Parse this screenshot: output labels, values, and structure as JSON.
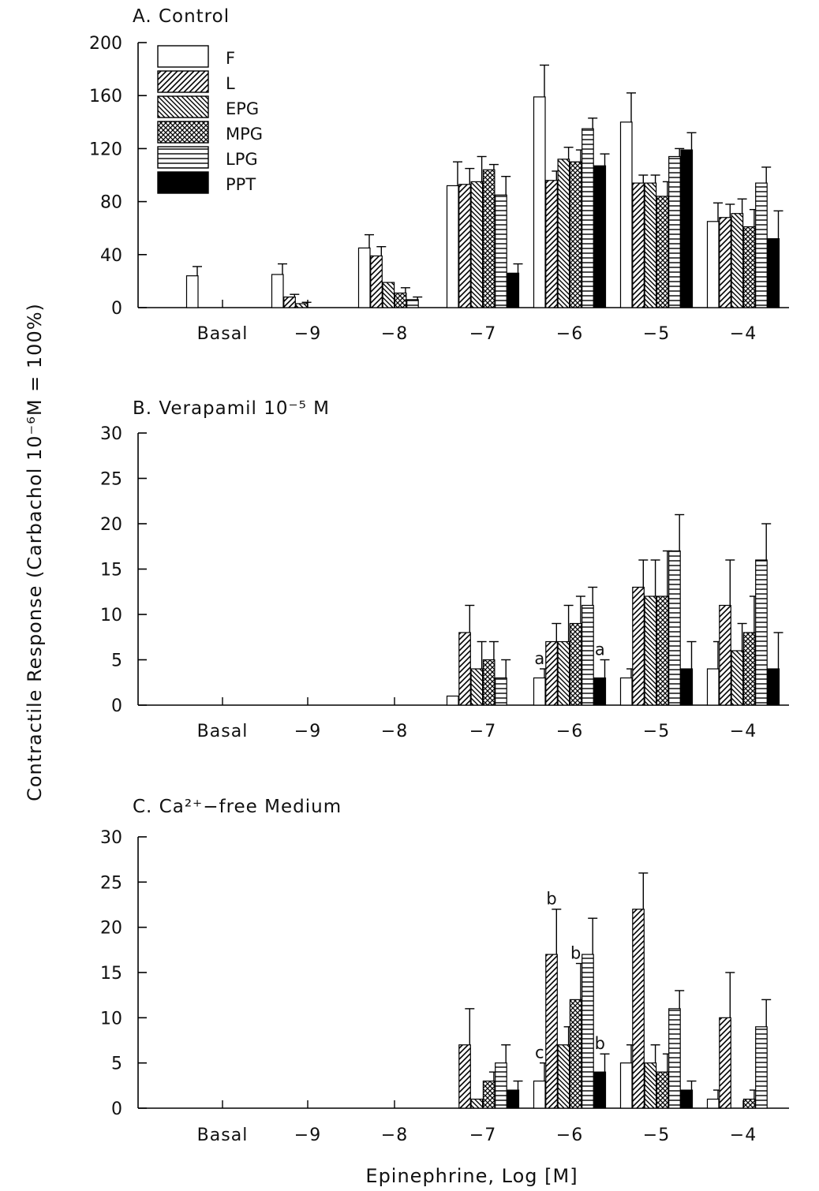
{
  "y_axis_label": "Contractile Response (Carbachol 10⁻⁶M = 100%)",
  "x_axis_label": "Epinephrine, Log [M]",
  "patterns": {
    "F": "white",
    "L": "diag-right",
    "EPG": "diag-left",
    "MPG": "cross",
    "LPG": "horiz",
    "PPT": "black"
  },
  "chart_data": [
    {
      "type": "bar",
      "title": "A. Control",
      "categories": [
        "Basal",
        "−9",
        "−8",
        "−7",
        "−6",
        "−5",
        "−4"
      ],
      "ylim": [
        0,
        200
      ],
      "yticks": [
        0,
        40,
        80,
        120,
        160,
        200
      ],
      "grid": false,
      "legend_placement": "top-left",
      "series": [
        {
          "name": "F",
          "values": [
            24,
            25,
            45,
            92,
            159,
            140,
            65
          ],
          "errors": [
            7,
            8,
            10,
            18,
            24,
            22,
            14
          ]
        },
        {
          "name": "L",
          "values": [
            0,
            8,
            39,
            93,
            96,
            94,
            68
          ],
          "errors": [
            0,
            2,
            7,
            12,
            7,
            6,
            10
          ]
        },
        {
          "name": "EPG",
          "values": [
            0,
            3,
            19,
            95,
            112,
            94,
            71
          ],
          "errors": [
            0,
            1,
            0,
            19,
            9,
            6,
            11
          ]
        },
        {
          "name": "MPG",
          "values": [
            0,
            0,
            11,
            104,
            110,
            84,
            61
          ],
          "errors": [
            0,
            0,
            4,
            4,
            9,
            11,
            13
          ]
        },
        {
          "name": "LPG",
          "values": [
            0,
            0,
            6,
            85,
            135,
            114,
            94
          ],
          "errors": [
            0,
            0,
            2,
            14,
            8,
            6,
            12
          ]
        },
        {
          "name": "PPT",
          "values": [
            0,
            0,
            0,
            26,
            107,
            119,
            52
          ],
          "errors": [
            0,
            0,
            0,
            7,
            9,
            13,
            21
          ]
        }
      ],
      "annotations": []
    },
    {
      "type": "bar",
      "title": "B. Verapamil 10⁻⁵ M",
      "categories": [
        "Basal",
        "−9",
        "−8",
        "−7",
        "−6",
        "−5",
        "−4"
      ],
      "ylim": [
        0,
        30
      ],
      "yticks": [
        0,
        5,
        10,
        15,
        20,
        25,
        30
      ],
      "grid": false,
      "series": [
        {
          "name": "F",
          "values": [
            0,
            0,
            0,
            1,
            3,
            3,
            4
          ],
          "errors": [
            0,
            0,
            0,
            0,
            1,
            1,
            3
          ]
        },
        {
          "name": "L",
          "values": [
            0,
            0,
            0,
            8,
            7,
            13,
            11
          ],
          "errors": [
            0,
            0,
            0,
            3,
            2,
            3,
            5
          ]
        },
        {
          "name": "EPG",
          "values": [
            0,
            0,
            0,
            4,
            7,
            12,
            6
          ],
          "errors": [
            0,
            0,
            0,
            3,
            4,
            4,
            3
          ]
        },
        {
          "name": "MPG",
          "values": [
            0,
            0,
            0,
            5,
            9,
            12,
            8
          ],
          "errors": [
            0,
            0,
            0,
            2,
            3,
            5,
            4
          ]
        },
        {
          "name": "LPG",
          "values": [
            0,
            0,
            0,
            3,
            11,
            17,
            16
          ],
          "errors": [
            0,
            0,
            0,
            2,
            2,
            4,
            4
          ]
        },
        {
          "name": "PPT",
          "values": [
            0,
            0,
            0,
            0,
            3,
            4,
            4
          ],
          "errors": [
            0,
            0,
            0,
            0,
            2,
            3,
            4
          ]
        }
      ],
      "annotations": [
        {
          "text": "a",
          "category": "−6",
          "series": "F"
        },
        {
          "text": "a",
          "category": "−6",
          "series": "PPT"
        }
      ]
    },
    {
      "type": "bar",
      "title": "C. Ca²⁺−free Medium",
      "categories": [
        "Basal",
        "−9",
        "−8",
        "−7",
        "−6",
        "−5",
        "−4"
      ],
      "ylim": [
        0,
        30
      ],
      "yticks": [
        0,
        5,
        10,
        15,
        20,
        25,
        30
      ],
      "grid": false,
      "series": [
        {
          "name": "F",
          "values": [
            0,
            0,
            0,
            0,
            3,
            5,
            1
          ],
          "errors": [
            0,
            0,
            0,
            0,
            2,
            2,
            1
          ]
        },
        {
          "name": "L",
          "values": [
            0,
            0,
            0,
            7,
            17,
            22,
            10
          ],
          "errors": [
            0,
            0,
            0,
            4,
            5,
            4,
            5
          ]
        },
        {
          "name": "EPG",
          "values": [
            0,
            0,
            0,
            1,
            7,
            5,
            0
          ],
          "errors": [
            0,
            0,
            0,
            0,
            2,
            2,
            0
          ]
        },
        {
          "name": "MPG",
          "values": [
            0,
            0,
            0,
            3,
            12,
            4,
            1
          ],
          "errors": [
            0,
            0,
            0,
            1,
            4,
            2,
            1
          ]
        },
        {
          "name": "LPG",
          "values": [
            0,
            0,
            0,
            5,
            17,
            11,
            9
          ],
          "errors": [
            0,
            0,
            0,
            2,
            4,
            2,
            3
          ]
        },
        {
          "name": "PPT",
          "values": [
            0,
            0,
            0,
            2,
            4,
            2,
            0
          ],
          "errors": [
            0,
            0,
            0,
            1,
            2,
            1,
            0
          ]
        }
      ],
      "annotations": [
        {
          "text": "c",
          "category": "−6",
          "series": "F"
        },
        {
          "text": "b",
          "category": "−6",
          "series": "L"
        },
        {
          "text": "b",
          "category": "−6",
          "series": "MPG"
        },
        {
          "text": "b",
          "category": "−6",
          "series": "PPT"
        }
      ]
    }
  ]
}
